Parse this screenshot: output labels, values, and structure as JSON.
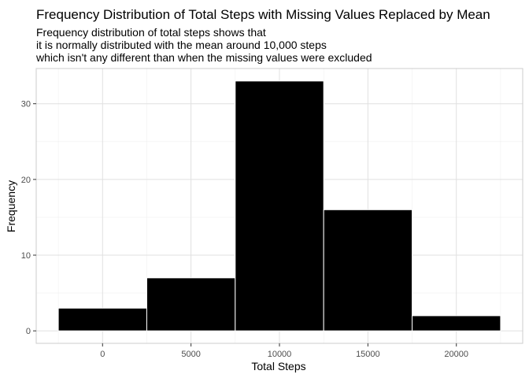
{
  "chart_data": {
    "type": "bar",
    "title": "Frequency Distribution of Total Steps with Missing Values Replaced by Mean",
    "subtitle": [
      "Frequency distribution of total steps shows that",
      "it is normally distributed with the mean around 10,000 steps",
      "which isn't any different than when the missing values were excluded"
    ],
    "xlabel": "Total Steps",
    "ylabel": "Frequency",
    "bin_width": 5000,
    "bins": [
      {
        "center": 0,
        "count": 3
      },
      {
        "center": 5000,
        "count": 7
      },
      {
        "center": 10000,
        "count": 33
      },
      {
        "center": 15000,
        "count": 16
      },
      {
        "center": 20000,
        "count": 2
      }
    ],
    "x_ticks": [
      0,
      5000,
      10000,
      15000,
      20000
    ],
    "x_tick_labels": [
      "0",
      "5000",
      "10000",
      "15000",
      "20000"
    ],
    "y_ticks": [
      0,
      10,
      20,
      30
    ],
    "y_tick_labels": [
      "0",
      "10",
      "20",
      "30"
    ],
    "xlim": [
      -3750,
      23750
    ],
    "ylim": [
      -1.65,
      34.65
    ],
    "grid": true,
    "bar_color": "#000000",
    "bar_edge_color": "#ffffff",
    "grid_color": "#e0e0e0",
    "grid_minor_color": "#f0f0f0",
    "panel_border_color": "#cccccc"
  }
}
